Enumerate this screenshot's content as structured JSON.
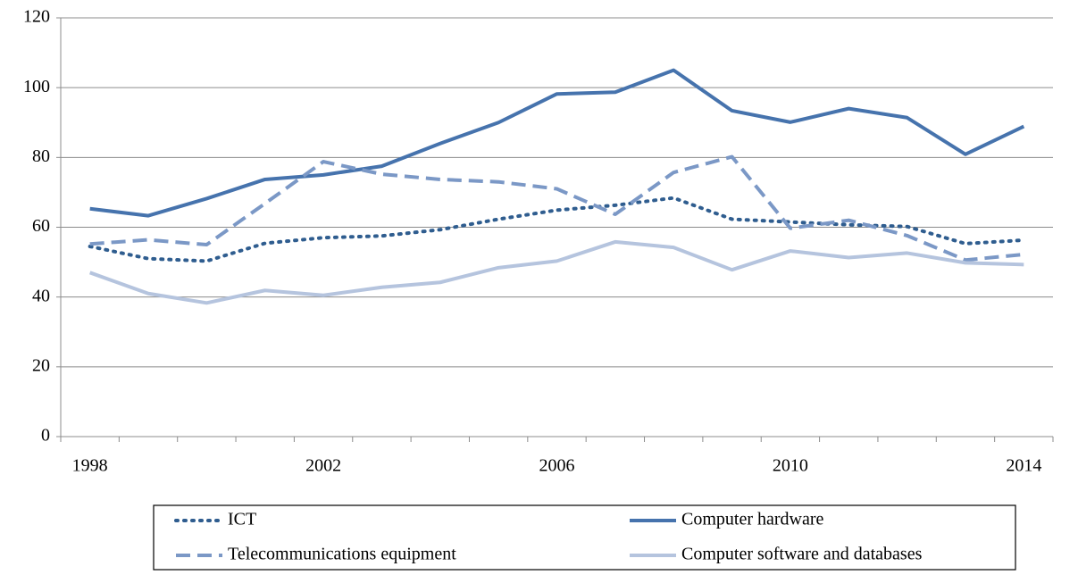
{
  "chart_data": {
    "type": "line",
    "categories": [
      "1998",
      null,
      null,
      null,
      "2002",
      null,
      null,
      null,
      "2006",
      null,
      null,
      null,
      "2010",
      null,
      null,
      null,
      "2014"
    ],
    "series": [
      {
        "name": "ICT",
        "color": "#2f5d8f",
        "style": "dotted",
        "values": [
          54.5,
          51,
          50.3,
          55.4,
          57,
          57.5,
          59.3,
          62.3,
          64.9,
          66.3,
          68.4,
          62.3,
          61.5,
          60.7,
          60.2,
          55.3,
          56.3
        ]
      },
      {
        "name": "Computer hardware",
        "color": "#4673ad",
        "style": "solid",
        "values": [
          65.3,
          63.3,
          68.2,
          73.7,
          75,
          77.5,
          84,
          90,
          98.2,
          98.7,
          105,
          93.4,
          90.1,
          94,
          91.4,
          80.9,
          88.9
        ]
      },
      {
        "name": "Telecommunications equipment",
        "color": "#7b98c6",
        "style": "dashed",
        "values": [
          55.2,
          56.4,
          55,
          66.8,
          78.8,
          75.2,
          73.7,
          73,
          71,
          63.7,
          75.7,
          80.2,
          59.7,
          62,
          57.6,
          50.6,
          52.2
        ]
      },
      {
        "name": "Computer software and databases",
        "color": "#b5c4de",
        "style": "solid",
        "values": [
          47,
          41,
          38.3,
          41.9,
          40.5,
          42.8,
          44.2,
          48.4,
          50.3,
          55.8,
          54.2,
          47.8,
          53.2,
          51.3,
          52.6,
          49.8,
          49.3
        ]
      }
    ],
    "ylim": [
      0,
      120
    ],
    "yticks": [
      0,
      20,
      40,
      60,
      80,
      100,
      120
    ],
    "grid": true
  }
}
